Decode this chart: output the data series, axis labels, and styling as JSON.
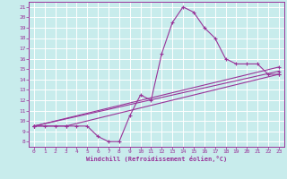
{
  "xlabel": "Windchill (Refroidissement éolien,°C)",
  "ylabel": "",
  "xlim": [
    -0.5,
    23.5
  ],
  "ylim": [
    7.5,
    21.5
  ],
  "xticks": [
    0,
    1,
    2,
    3,
    4,
    5,
    6,
    7,
    8,
    9,
    10,
    11,
    12,
    13,
    14,
    15,
    16,
    17,
    18,
    19,
    20,
    21,
    22,
    23
  ],
  "yticks": [
    8,
    9,
    10,
    11,
    12,
    13,
    14,
    15,
    16,
    17,
    18,
    19,
    20,
    21
  ],
  "bg_color": "#c8ecec",
  "grid_color": "#ffffff",
  "line_color": "#993399",
  "series1_x": [
    0,
    1,
    2,
    3,
    4,
    5,
    6,
    7,
    8,
    9,
    10,
    11,
    12,
    13,
    14,
    15,
    16,
    17,
    18,
    19,
    20,
    21,
    22,
    23
  ],
  "series1_y": [
    9.5,
    9.5,
    9.5,
    9.5,
    9.5,
    9.5,
    8.5,
    8.0,
    8.0,
    10.5,
    12.5,
    12.0,
    16.5,
    19.5,
    21.0,
    20.5,
    19.0,
    18.0,
    16.0,
    15.5,
    15.5,
    15.5,
    14.5,
    14.5
  ],
  "series2_x": [
    0,
    3,
    23
  ],
  "series2_y": [
    9.5,
    9.5,
    14.5
  ],
  "series3_x": [
    0,
    23
  ],
  "series3_y": [
    9.5,
    15.2
  ],
  "series4_x": [
    0,
    23
  ],
  "series4_y": [
    9.5,
    14.8
  ]
}
